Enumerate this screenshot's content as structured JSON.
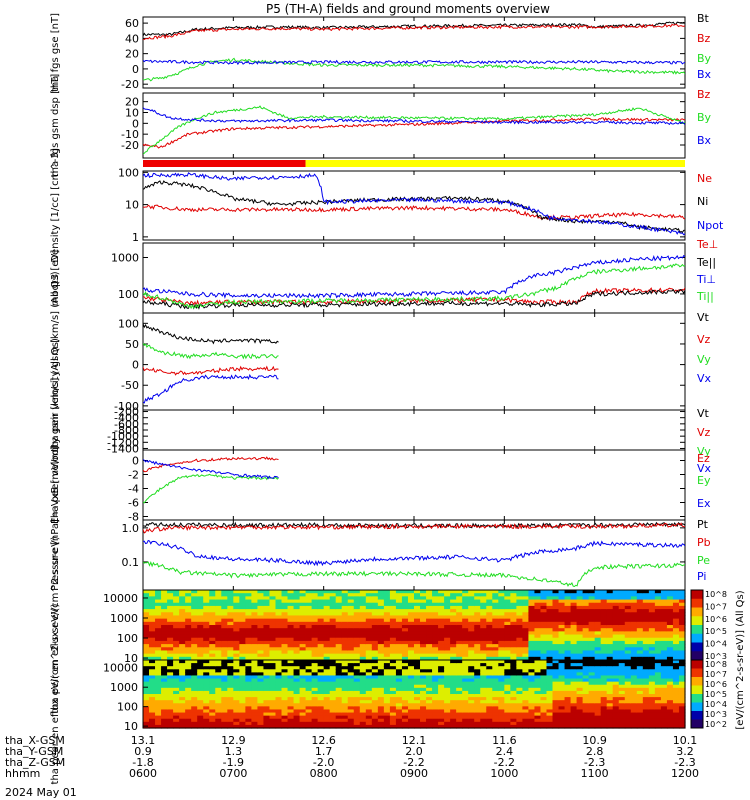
{
  "title": "P5 (TH-A) fields and ground moments overview",
  "date_label": "2024 May 01",
  "footer": {
    "labels": [
      "tha_X-GSM",
      "tha_Y-GSM",
      "tha_Z-GSM",
      "hhmm"
    ],
    "columns": [
      {
        "x": "13.1",
        "y": "0.9",
        "z": "-1.8",
        "t": "0600"
      },
      {
        "x": "12.9",
        "y": "1.3",
        "z": "-1.9",
        "t": "0700"
      },
      {
        "x": "12.6",
        "y": "1.7",
        "z": "-2.0",
        "t": "0800"
      },
      {
        "x": "12.1",
        "y": "2.0",
        "z": "-2.2",
        "t": "0900"
      },
      {
        "x": "11.6",
        "y": "2.4",
        "z": "-2.2",
        "t": "1000"
      },
      {
        "x": "10.9",
        "y": "2.8",
        "z": "-2.3",
        "t": "1100"
      },
      {
        "x": "10.1",
        "y": "3.2",
        "z": "-2.3",
        "t": "1200"
      }
    ]
  },
  "colors": {
    "black": "#000000",
    "red": "#e00000",
    "green": "#22dd22",
    "blue": "#0000ee",
    "yellow": "#ffff00",
    "bar_red": "#ee0000"
  },
  "colorbar": {
    "label": "[eV/(cm^2-s-sr-eV)] (All Qs)",
    "ticks": [
      "10^8",
      "10^7",
      "10^6",
      "10^5",
      "10^4",
      "10^3"
    ],
    "ticks2": [
      "10^8",
      "10^7",
      "10^6",
      "10^5",
      "10^4",
      "10^3",
      "10^2"
    ]
  },
  "chart_data": [
    {
      "type": "line",
      "ylabel": "tha fgs gse [nT]",
      "ylim": [
        -25,
        68
      ],
      "yticks": [
        "60",
        "40",
        "20",
        "0",
        "-20"
      ],
      "series": [
        {
          "name": "Bt",
          "color": "black",
          "x": [
            6.0,
            6.3,
            6.6,
            7.0,
            7.5,
            8.0,
            9.0,
            10.0,
            10.8,
            11.0,
            11.5,
            12.0
          ],
          "values": [
            45,
            45,
            52,
            54,
            55,
            54,
            56,
            57,
            58,
            55,
            57,
            61
          ]
        },
        {
          "name": "Bz",
          "color": "red",
          "x": [
            6.0,
            6.3,
            6.6,
            7.0,
            7.5,
            8.0,
            9.0,
            10.0,
            11.0,
            12.0
          ],
          "values": [
            40,
            43,
            50,
            52,
            53,
            52,
            54,
            55,
            55,
            57
          ]
        },
        {
          "name": "By",
          "color": "green",
          "x": [
            6.0,
            6.2,
            6.4,
            6.6,
            6.8,
            7.0,
            7.5,
            8.0,
            9.0,
            10.0,
            10.8,
            11.2,
            12.0
          ],
          "values": [
            -15,
            -12,
            -5,
            5,
            10,
            12,
            8,
            5,
            5,
            3,
            0,
            -3,
            -5
          ]
        },
        {
          "name": "Bx",
          "color": "blue",
          "x": [
            6.0,
            7.0,
            8.0,
            9.0,
            10.0,
            11.0,
            12.0
          ],
          "values": [
            10,
            8,
            9,
            9,
            9,
            9,
            8
          ]
        }
      ]
    },
    {
      "type": "line",
      "ylabel": "tha fgs gsm dsp [nT]",
      "ylim": [
        -32,
        28
      ],
      "yticks": [
        "20",
        "10",
        "0",
        "-10",
        "-20"
      ],
      "series": [
        {
          "name": "Bz",
          "color": "red",
          "x": [
            6.0,
            6.2,
            6.5,
            7.0,
            7.5,
            8.0,
            9.0,
            10.0,
            11.0,
            12.0
          ],
          "values": [
            -20,
            -22,
            -10,
            -5,
            -4,
            -3,
            -1,
            2,
            4,
            3
          ]
        },
        {
          "name": "By",
          "color": "green",
          "x": [
            6.0,
            6.2,
            6.4,
            6.6,
            6.8,
            7.0,
            7.3,
            7.6,
            8.0,
            9.0,
            10.0,
            11.0,
            11.5,
            12.0
          ],
          "values": [
            -28,
            -15,
            -3,
            5,
            10,
            12,
            15,
            5,
            6,
            5,
            4,
            8,
            14,
            0
          ]
        },
        {
          "name": "Bx",
          "color": "blue",
          "x": [
            6.0,
            6.3,
            6.6,
            7.0,
            8.0,
            9.0,
            10.0,
            11.0,
            12.0
          ],
          "values": [
            15,
            5,
            3,
            2,
            3,
            2,
            1,
            1,
            0
          ]
        }
      ]
    },
    {
      "type": "line",
      "ylabel": "Density [1/cc] [cm^-3]",
      "yscale": "log",
      "ylim": [
        0.8,
        110
      ],
      "yticks": [
        "100",
        "10",
        "1"
      ],
      "series": [
        {
          "name": "Ne",
          "color": "red",
          "x": [
            6.0,
            6.5,
            7.0,
            8.0,
            9.0,
            10.0,
            10.4,
            10.8,
            11.0,
            11.5,
            12.0
          ],
          "values": [
            9,
            7,
            7,
            7,
            8,
            7,
            4,
            4,
            4.5,
            5,
            4
          ]
        },
        {
          "name": "Ni",
          "color": "black",
          "x": [
            6.0,
            6.2,
            6.5,
            7.0,
            7.5,
            8.0,
            8.5,
            9.0,
            9.5,
            10.0,
            10.4,
            10.8,
            11.2,
            11.5,
            12.0
          ],
          "values": [
            30,
            50,
            40,
            15,
            10,
            12,
            14,
            15,
            16,
            13,
            4,
            3,
            3,
            2,
            1.5
          ]
        },
        {
          "name": "Npot",
          "color": "blue",
          "x": [
            6.0,
            6.5,
            7.0,
            7.2,
            7.5,
            7.9,
            8.0,
            8.5,
            9.0,
            10.0,
            10.5,
            11.0,
            11.5,
            12.0
          ],
          "values": [
            80,
            85,
            60,
            70,
            70,
            80,
            12,
            13,
            14,
            12,
            4,
            3,
            2,
            1.2
          ]
        }
      ]
    },
    {
      "type": "line",
      "ylabel": "moqt3 [eV]",
      "yscale": "log",
      "ylim": [
        30,
        2500
      ],
      "yticks": [
        "1000",
        "100"
      ],
      "series": [
        {
          "name": "Te⊥",
          "color": "red",
          "x": [
            6.0,
            6.5,
            7.0,
            8.0,
            9.0,
            10.0,
            10.3,
            10.8,
            11.0,
            12.0
          ],
          "values": [
            80,
            55,
            60,
            60,
            65,
            70,
            60,
            60,
            120,
            130
          ]
        },
        {
          "name": "Te||",
          "color": "black",
          "x": [
            6.0,
            6.5,
            7.0,
            8.0,
            9.0,
            10.0,
            10.3,
            10.8,
            11.0,
            12.0
          ],
          "values": [
            60,
            45,
            50,
            50,
            55,
            55,
            50,
            55,
            100,
            120
          ]
        },
        {
          "name": "Ti⊥",
          "color": "blue",
          "x": [
            6.0,
            6.5,
            7.0,
            8.0,
            9.0,
            10.0,
            10.3,
            10.6,
            11.0,
            11.5,
            12.0
          ],
          "values": [
            130,
            100,
            90,
            90,
            100,
            110,
            300,
            400,
            700,
            900,
            1000
          ]
        },
        {
          "name": "Ti||",
          "color": "green",
          "x": [
            6.0,
            6.5,
            7.0,
            8.0,
            9.0,
            10.0,
            10.3,
            10.6,
            11.0,
            11.5,
            12.0
          ],
          "values": [
            100,
            45,
            60,
            65,
            70,
            75,
            100,
            150,
            400,
            500,
            600
          ]
        }
      ]
    },
    {
      "type": "line",
      "ylabel": "tha peir velocity gsm [km/s] (All Qs)",
      "ylim": [
        -110,
        125
      ],
      "yticks": [
        "100",
        "50",
        "0",
        "-50",
        "-100"
      ],
      "series": [
        {
          "name": "Vt",
          "color": "black",
          "x": [
            6.0,
            6.2,
            6.4,
            6.6,
            6.8,
            7.0,
            7.5
          ],
          "values": [
            95,
            80,
            65,
            60,
            55,
            60,
            55
          ]
        },
        {
          "name": "Vz",
          "color": "red",
          "x": [
            6.0,
            6.3,
            6.6,
            7.0,
            7.5
          ],
          "values": [
            -10,
            -20,
            -20,
            -10,
            -10
          ]
        },
        {
          "name": "Vy",
          "color": "green",
          "x": [
            6.0,
            6.2,
            6.5,
            6.8,
            7.0,
            7.5
          ],
          "values": [
            50,
            30,
            20,
            25,
            20,
            20
          ]
        },
        {
          "name": "Vx",
          "color": "blue",
          "x": [
            6.0,
            6.2,
            6.4,
            6.7,
            7.0,
            7.5
          ],
          "values": [
            -90,
            -70,
            -40,
            -30,
            -30,
            -30
          ]
        }
      ]
    },
    {
      "type": "line",
      "ylabel": "tha peer velocity gsm [km/s] (All Qs)",
      "ylim": [
        -1450,
        -150
      ],
      "yticks": [
        "-200",
        "-400",
        "-600",
        "-800",
        "-1000",
        "-1200",
        "-1400"
      ],
      "series": [
        {
          "name": "Vt",
          "color": "black",
          "x": [],
          "values": []
        },
        {
          "name": "Vz",
          "color": "red",
          "x": [],
          "values": []
        },
        {
          "name": "Vy",
          "color": "green",
          "x": [],
          "values": []
        },
        {
          "name": "Vx",
          "color": "blue",
          "x": [],
          "values": []
        }
      ]
    },
    {
      "type": "line",
      "ylabel": "E=-VxB [mV/m]",
      "ylim": [
        -8.5,
        1.5
      ],
      "yticks": [
        "0",
        "-2",
        "-4",
        "-6",
        "-8"
      ],
      "series": [
        {
          "name": "Ez",
          "color": "red",
          "x": [
            6.0,
            6.3,
            6.6,
            7.0,
            7.5
          ],
          "values": [
            -1.5,
            -0.5,
            0,
            0.3,
            0.3
          ]
        },
        {
          "name": "Ey",
          "color": "green",
          "x": [
            6.0,
            6.2,
            6.4,
            6.7,
            7.0,
            7.5
          ],
          "values": [
            -6,
            -4,
            -2.5,
            -2,
            -2.5,
            -2.5
          ]
        },
        {
          "name": "Ex",
          "color": "blue",
          "x": [
            6.0,
            6.2,
            6.4,
            6.7,
            7.0,
            7.5
          ],
          "values": [
            0,
            -0.5,
            -1,
            -1.5,
            -2,
            -2.5
          ]
        }
      ]
    },
    {
      "type": "line",
      "ylabel": "Pressure [nPa]",
      "yscale": "log",
      "ylim": [
        0.015,
        1.7
      ],
      "yticks": [
        "1.0",
        "0.1"
      ],
      "series": [
        {
          "name": "Pt",
          "color": "black",
          "x": [
            6.0,
            7.0,
            8.0,
            9.0,
            10.0,
            11.0,
            12.0
          ],
          "values": [
            1.25,
            1.2,
            1.2,
            1.15,
            1.15,
            1.2,
            1.3
          ]
        },
        {
          "name": "Pb",
          "color": "red",
          "x": [
            6.0,
            6.3,
            7.0,
            8.0,
            9.0,
            10.0,
            11.0,
            12.0
          ],
          "values": [
            0.8,
            1.0,
            1.05,
            1.05,
            1.1,
            1.1,
            1.1,
            1.2
          ]
        },
        {
          "name": "Pe",
          "color": "green",
          "x": [
            6.0,
            6.4,
            7.0,
            8.0,
            9.0,
            10.0,
            10.4,
            10.8,
            11.0,
            12.0
          ],
          "values": [
            0.1,
            0.05,
            0.04,
            0.045,
            0.045,
            0.04,
            0.03,
            0.02,
            0.07,
            0.08
          ]
        },
        {
          "name": "Pi",
          "color": "blue",
          "x": [
            6.0,
            6.3,
            6.6,
            7.0,
            7.5,
            8.0,
            8.5,
            9.0,
            9.5,
            10.0,
            10.4,
            10.8,
            11.0,
            12.0
          ],
          "values": [
            0.4,
            0.3,
            0.15,
            0.12,
            0.11,
            0.09,
            0.12,
            0.13,
            0.14,
            0.11,
            0.2,
            0.25,
            0.35,
            0.3
          ]
        }
      ]
    },
    {
      "type": "heatmap",
      "ylabel": "tha peir en eflux eV/(cm^2-s-sr-eV)",
      "yscale": "log",
      "ylim": [
        8,
        25000
      ],
      "yticks": [
        "10000",
        "1000",
        "100",
        "10"
      ]
    },
    {
      "type": "heatmap",
      "ylabel": "tha peer en eflux eV/(cm^2-s-sr-eV)",
      "yscale": "log",
      "ylim": [
        8,
        25000
      ],
      "yticks": [
        "10000",
        "1000",
        "100",
        "10"
      ]
    }
  ]
}
